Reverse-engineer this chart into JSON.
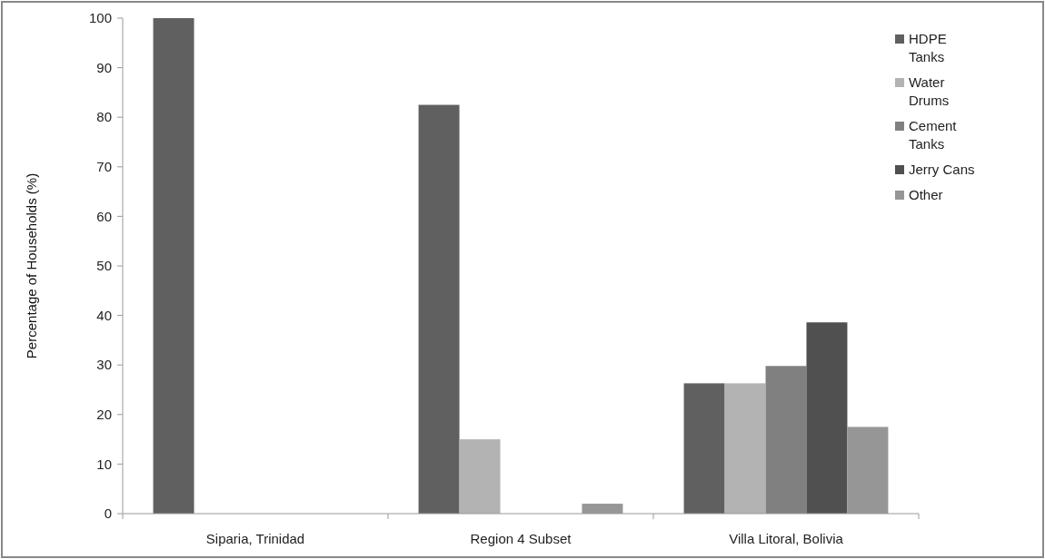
{
  "chart_data": {
    "type": "bar",
    "ylabel": "Percentage of Households (%)",
    "categories": [
      "Siparia, Trinidad",
      "Region 4 Subset",
      "Villa Litoral, Bolivia"
    ],
    "series": [
      {
        "name": "HDPE Tanks",
        "color": "#606060",
        "values": [
          100,
          82.5,
          26.3
        ]
      },
      {
        "name": "Water Drums",
        "color": "#b3b3b3",
        "values": [
          0,
          15,
          26.3
        ]
      },
      {
        "name": "Cement Tanks",
        "color": "#808080",
        "values": [
          0,
          0,
          29.8
        ]
      },
      {
        "name": "Jerry Cans",
        "color": "#505050",
        "values": [
          0,
          0,
          38.6
        ]
      },
      {
        "name": "Other",
        "color": "#969696",
        "values": [
          0,
          2,
          17.5
        ]
      }
    ],
    "ylim": [
      0,
      100
    ],
    "yticks": [
      0,
      10,
      20,
      30,
      40,
      50,
      60,
      70,
      80,
      90,
      100
    ],
    "legend": "right"
  }
}
